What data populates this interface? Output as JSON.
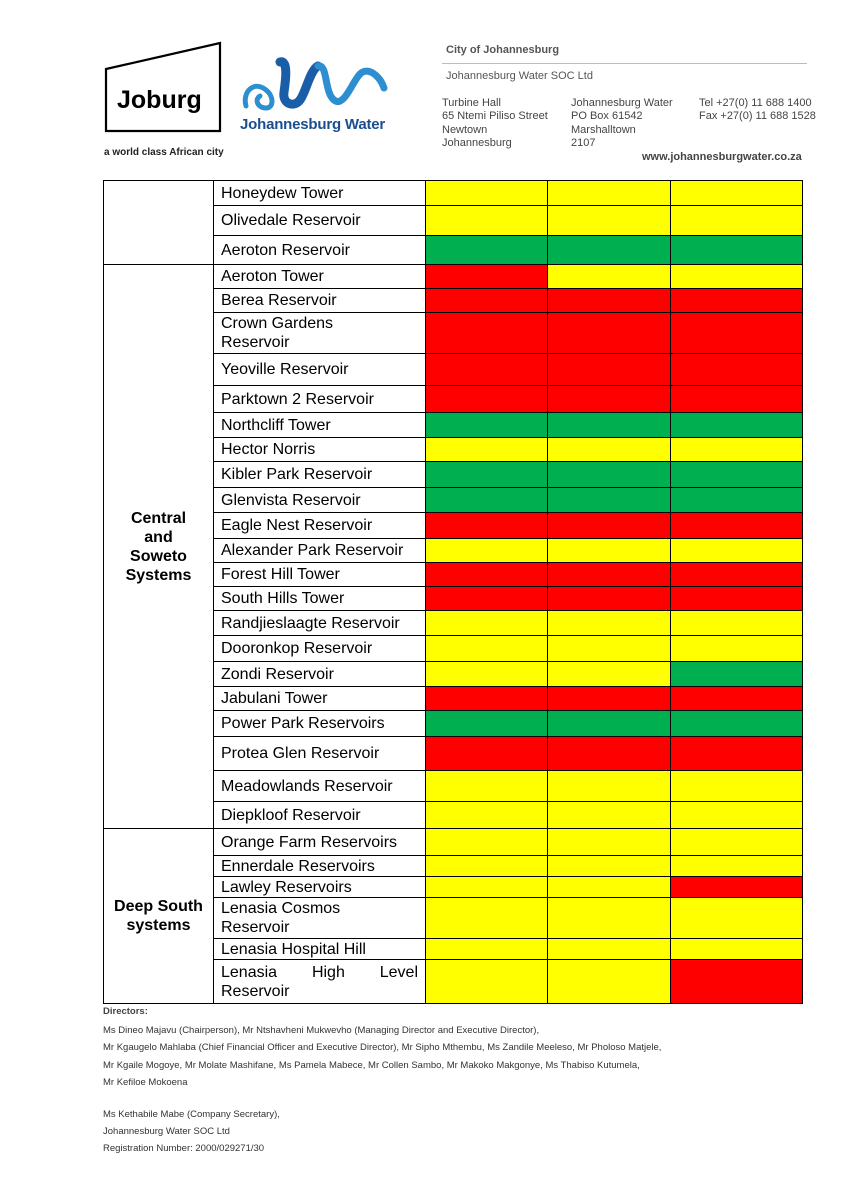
{
  "header": {
    "joburg_logo_text": "Joburg",
    "joburg_tagline": "a world class African city",
    "jw_logo_text": "Johannesburg Water",
    "city": "City of Johannesburg",
    "company": "Johannesburg Water SOC Ltd",
    "address_street": [
      "Turbine Hall",
      "65 Ntemi Piliso Street",
      "Newtown",
      "Johannesburg"
    ],
    "address_postal": [
      "Johannesburg Water",
      "PO Box 61542",
      "Marshalltown",
      "2107"
    ],
    "contact": [
      "Tel +27(0) 11 688 1400",
      "Fax +27(0) 11 688 1528"
    ],
    "website": "www.johannesburgwater.co.za"
  },
  "colors": {
    "yellow": "#ffff00",
    "green": "#00b050",
    "red": "#ff0000"
  },
  "table": {
    "groups": [
      {
        "label": "",
        "rows": [
          {
            "name": "Honeydew Tower",
            "status": [
              "yellow",
              "yellow",
              "yellow"
            ]
          },
          {
            "name": "Olivedale Reservoir",
            "status": [
              "yellow",
              "yellow",
              "yellow"
            ]
          },
          {
            "name": "Aeroton Reservoir",
            "status": [
              "green",
              "green",
              "green"
            ]
          }
        ]
      },
      {
        "label": "Central and Soweto Systems",
        "label_lines": [
          "Central",
          "and",
          "Soweto",
          "Systems"
        ],
        "rows": [
          {
            "name": "Aeroton Tower",
            "status": [
              "red",
              "yellow",
              "yellow"
            ]
          },
          {
            "name": "Berea Reservoir",
            "status": [
              "red",
              "red",
              "red"
            ]
          },
          {
            "name": "Crown Gardens Reservoir",
            "lines": [
              "Crown Gardens",
              "Reservoir"
            ],
            "status": [
              "red",
              "red",
              "red"
            ]
          },
          {
            "name": "Yeoville Reservoir",
            "status": [
              "red",
              "red",
              "red"
            ]
          },
          {
            "name": "Parktown 2 Reservoir",
            "status": [
              "red",
              "red",
              "red"
            ]
          },
          {
            "name": "Northcliff Tower",
            "status": [
              "green",
              "green",
              "green"
            ]
          },
          {
            "name": "Hector Norris",
            "status": [
              "yellow",
              "yellow",
              "yellow"
            ]
          },
          {
            "name": "Kibler Park Reservoir",
            "status": [
              "green",
              "green",
              "green"
            ]
          },
          {
            "name": "Glenvista Reservoir",
            "status": [
              "green",
              "green",
              "green"
            ]
          },
          {
            "name": "Eagle Nest Reservoir",
            "status": [
              "red",
              "red",
              "red"
            ]
          },
          {
            "name": "Alexander Park Reservoir",
            "status": [
              "yellow",
              "yellow",
              "yellow"
            ]
          },
          {
            "name": "Forest Hill Tower",
            "status": [
              "red",
              "red",
              "red"
            ]
          },
          {
            "name": "South Hills Tower",
            "status": [
              "red",
              "red",
              "red"
            ]
          },
          {
            "name": "Randjieslaagte Reservoir",
            "status": [
              "yellow",
              "yellow",
              "yellow"
            ]
          },
          {
            "name": "Dooronkop Reservoir",
            "status": [
              "yellow",
              "yellow",
              "yellow"
            ]
          },
          {
            "name": "Zondi Reservoir",
            "status": [
              "yellow",
              "yellow",
              "green"
            ]
          },
          {
            "name": "Jabulani Tower",
            "status": [
              "red",
              "red",
              "red"
            ]
          },
          {
            "name": "Power Park Reservoirs",
            "status": [
              "green",
              "green",
              "green"
            ]
          },
          {
            "name": "Protea Glen Reservoir",
            "status": [
              "red",
              "red",
              "red"
            ]
          },
          {
            "name": "Meadowlands  Reservoir",
            "status": [
              "yellow",
              "yellow",
              "yellow"
            ]
          },
          {
            "name": "Diepkloof Reservoir",
            "status": [
              "yellow",
              "yellow",
              "yellow"
            ]
          }
        ]
      },
      {
        "label": "Deep South systems",
        "label_lines": [
          "Deep South",
          "systems"
        ],
        "rows": [
          {
            "name": "Orange Farm Reservoirs",
            "status": [
              "yellow",
              "yellow",
              "yellow"
            ]
          },
          {
            "name": "Ennerdale Reservoirs",
            "status": [
              "yellow",
              "yellow",
              "yellow"
            ]
          },
          {
            "name": "Lawley Reservoirs",
            "status": [
              "yellow",
              "yellow",
              "red"
            ]
          },
          {
            "name": "Lenasia Cosmos Reservoir",
            "lines": [
              "Lenasia Cosmos",
              "Reservoir"
            ],
            "status": [
              "yellow",
              "yellow",
              "yellow"
            ]
          },
          {
            "name": "Lenasia Hospital Hill",
            "status": [
              "yellow",
              "yellow",
              "yellow"
            ]
          },
          {
            "name": "Lenasia High Level Reservoir",
            "lines": [
              "Lenasia  High  Level",
              "Reservoir"
            ],
            "justify": true,
            "status": [
              "yellow",
              "yellow",
              "red"
            ]
          }
        ]
      }
    ]
  },
  "footer": {
    "directors_heading": "Directors:",
    "directors_lines": [
      "Ms Dineo Majavu (Chairperson), Mr Ntshavheni Mukwevho (Managing Director and Executive Director),",
      "Mr Kgaugelo Mahlaba (Chief Financial Officer and Executive Director), Mr Sipho Mthembu, Ms Zandile Meeleso, Mr Pholoso Matjele,",
      "Mr Kgaile Mogoye, Mr Molate Mashifane, Ms Pamela Mabece, Mr Collen Sambo, Mr  Makoko Makgonye, Ms Thabiso Kutumela,",
      "Mr Kefiloe Mokoena"
    ],
    "secretary_lines": [
      "Ms Kethabile Mabe (Company Secretary),",
      "Johannesburg Water SOC Ltd",
      "Registration Number: 2000/029271/30"
    ]
  }
}
